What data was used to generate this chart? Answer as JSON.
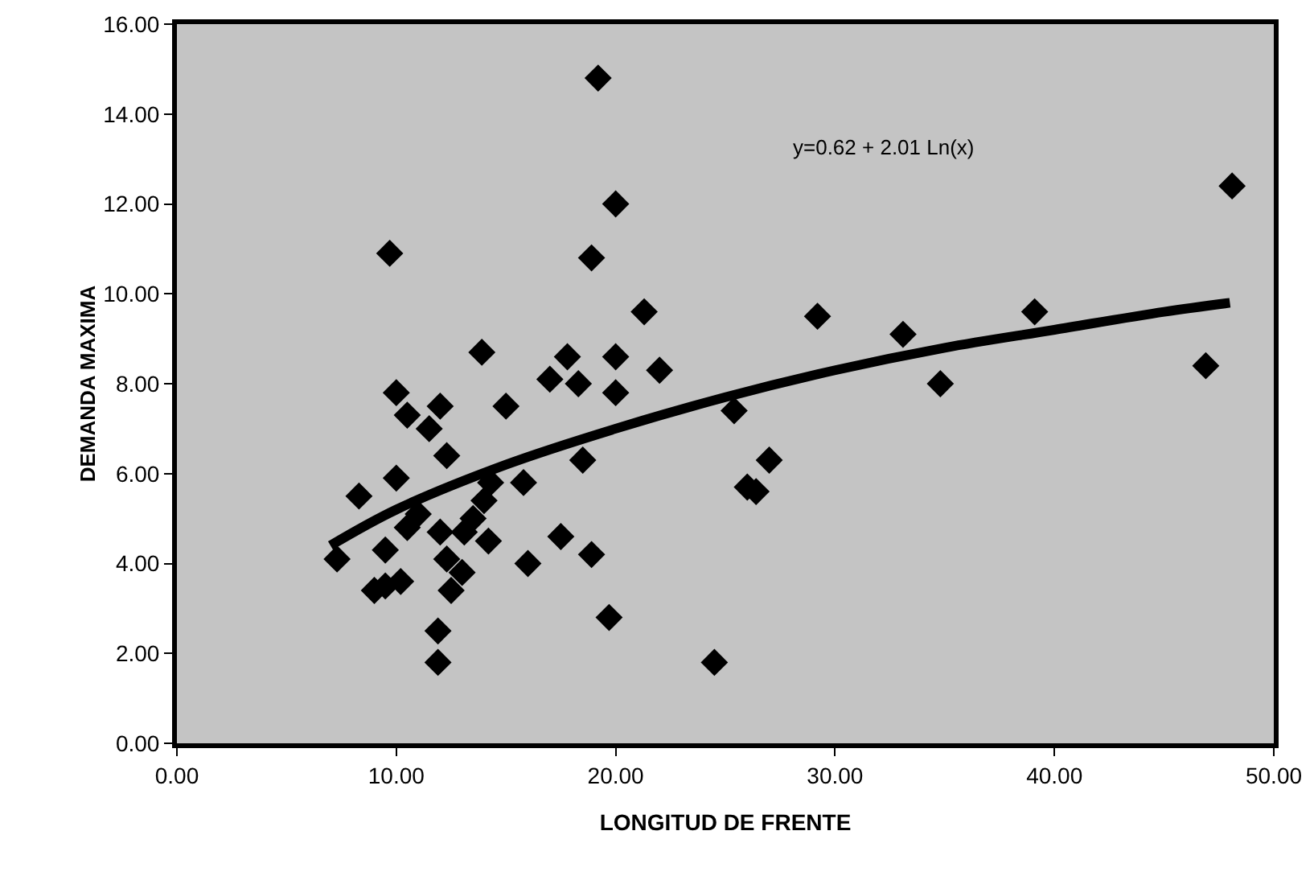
{
  "chart_data": {
    "type": "scatter",
    "xlabel": "LONGITUD DE FRENTE",
    "ylabel": "DEMANDA MAXIMA",
    "annotations": [
      "y=0.62 + 2.01 Ln(x)"
    ],
    "xlim": [
      0,
      50
    ],
    "ylim": [
      0,
      16
    ],
    "xticks": [
      {
        "value": 0,
        "label": "0.00"
      },
      {
        "value": 10,
        "label": "10.00"
      },
      {
        "value": 20,
        "label": "20.00"
      },
      {
        "value": 30,
        "label": "30.00"
      },
      {
        "value": 40,
        "label": "40.00"
      },
      {
        "value": 50,
        "label": "50.00"
      }
    ],
    "yticks": [
      {
        "value": 0,
        "label": "0.00"
      },
      {
        "value": 2,
        "label": "2.00"
      },
      {
        "value": 4,
        "label": "4.00"
      },
      {
        "value": 6,
        "label": "6.00"
      },
      {
        "value": 8,
        "label": "8.00"
      },
      {
        "value": 10,
        "label": "10.00"
      },
      {
        "value": 12,
        "label": "12.00"
      },
      {
        "value": 14,
        "label": "14.00"
      },
      {
        "value": 16,
        "label": "16.00"
      }
    ],
    "grid": false,
    "marker": "diamond",
    "series": [
      {
        "color": "#000000",
        "x": [
          48.1,
          29.2,
          33.1,
          39.1,
          34.8,
          46.9,
          27,
          26.4,
          26,
          25.4,
          19.2,
          20,
          9.7,
          18.9,
          21.3,
          13.9,
          17.8,
          20,
          22,
          17,
          18.3,
          20,
          10,
          12,
          15,
          12.3,
          18.5,
          15.8,
          10,
          8.3,
          7.3,
          12,
          13.1,
          9.5,
          12.5,
          17.5,
          18.9,
          16,
          19.7,
          11.9,
          11.9,
          24.5,
          9,
          10.2,
          9.5,
          10.5,
          11,
          13.5,
          14,
          14.3,
          13,
          12.3,
          11.5,
          14.2,
          10.5
        ],
        "values": [
          12.4,
          9.5,
          9.1,
          9.6,
          8.0,
          8.4,
          6.3,
          5.6,
          5.7,
          7.4,
          14.8,
          12.0,
          10.9,
          10.8,
          9.6,
          8.7,
          8.6,
          8.6,
          8.3,
          8.1,
          8.0,
          7.8,
          7.8,
          7.5,
          7.5,
          6.4,
          6.3,
          5.8,
          5.9,
          5.5,
          4.1,
          4.7,
          4.7,
          3.5,
          3.4,
          4.6,
          4.2,
          4.0,
          2.8,
          2.5,
          1.8,
          1.8,
          3.4,
          3.6,
          4.3,
          4.8,
          5.1,
          5.0,
          5.4,
          5.8,
          3.8,
          4.1,
          7.0,
          4.5,
          7.3
        ]
      },
      {
        "type": "line",
        "color": "#000000",
        "line_style": "solid",
        "marker": "none",
        "x": [
          7,
          10,
          15,
          20,
          25,
          30,
          35,
          40,
          45,
          48
        ],
        "values": [
          4.4,
          5.2,
          6.2,
          7.0,
          7.7,
          8.3,
          8.8,
          9.2,
          9.6,
          9.8
        ]
      }
    ]
  }
}
